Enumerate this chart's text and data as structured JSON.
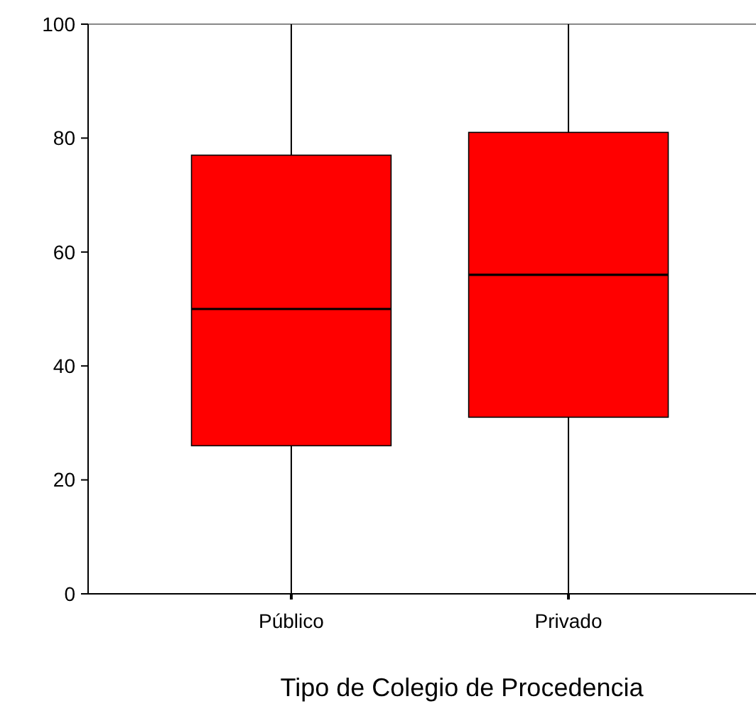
{
  "chart_data": {
    "type": "box",
    "xlabel": "Tipo de Colegio de Procedencia",
    "categories": [
      "Público",
      "Privado"
    ],
    "series": [
      {
        "color": "#ff0000",
        "boxes": [
          {
            "low": 0,
            "q1": 26,
            "median": 50,
            "q3": 77,
            "high": 100
          },
          {
            "low": 0,
            "q1": 31,
            "median": 56,
            "q3": 81,
            "high": 100
          }
        ]
      }
    ],
    "ylim": [
      0,
      100
    ],
    "yticks": [
      0,
      20,
      40,
      60,
      80,
      100
    ],
    "grid": false
  }
}
